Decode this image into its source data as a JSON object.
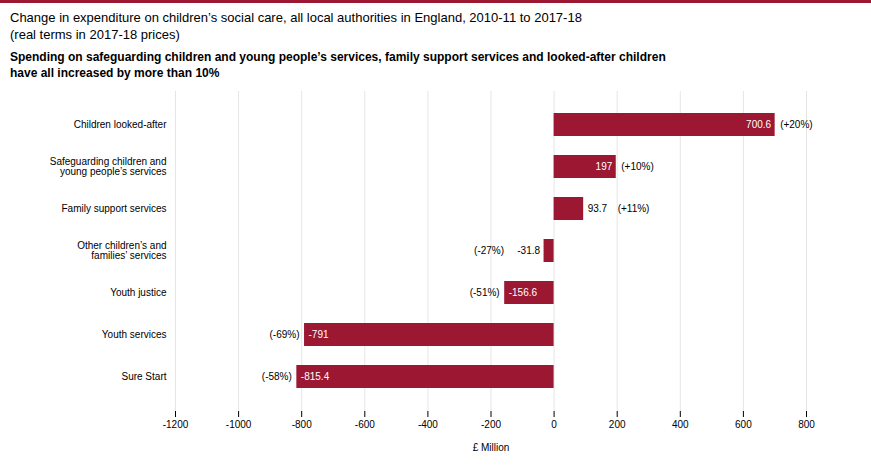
{
  "chart_data": {
    "type": "bar",
    "orientation": "horizontal",
    "title": "Change in expenditure on children’s social care, all local authorities in England, 2010-11 to 2017-18\n(real terms in 2017-18 prices)",
    "subtitle": "Spending on safeguarding children and young people’s services, family support services and looked-after children\nhave all increased by more than 10%",
    "categories": [
      "Sure Start",
      "Youth services",
      "Youth justice",
      "Other children’s and\nfamilies’ services",
      "Family support services",
      "Safeguarding children and\nyoung people’s services",
      "Children looked-after"
    ],
    "values": [
      -815.4,
      -791.0,
      -156.6,
      -31.8,
      93.7,
      197.0,
      700.6
    ],
    "value_labels": [
      "-815.4",
      "-791",
      "-156.6",
      "-31.8",
      "93.7",
      "197",
      "700.6"
    ],
    "pct_labels": [
      "(-58%)",
      "(-69%)",
      "(-51%)",
      "(-27%)",
      "(+11%)",
      "(+10%)",
      "(+20%)"
    ],
    "data_labels": true,
    "color": "#9b1732",
    "xlabel": "£ Million",
    "xlim": [
      -1200,
      800
    ],
    "xticks": [
      -1200,
      -1000,
      -800,
      -600,
      -400,
      -200,
      0,
      200,
      400,
      600,
      800
    ],
    "grid": true
  }
}
